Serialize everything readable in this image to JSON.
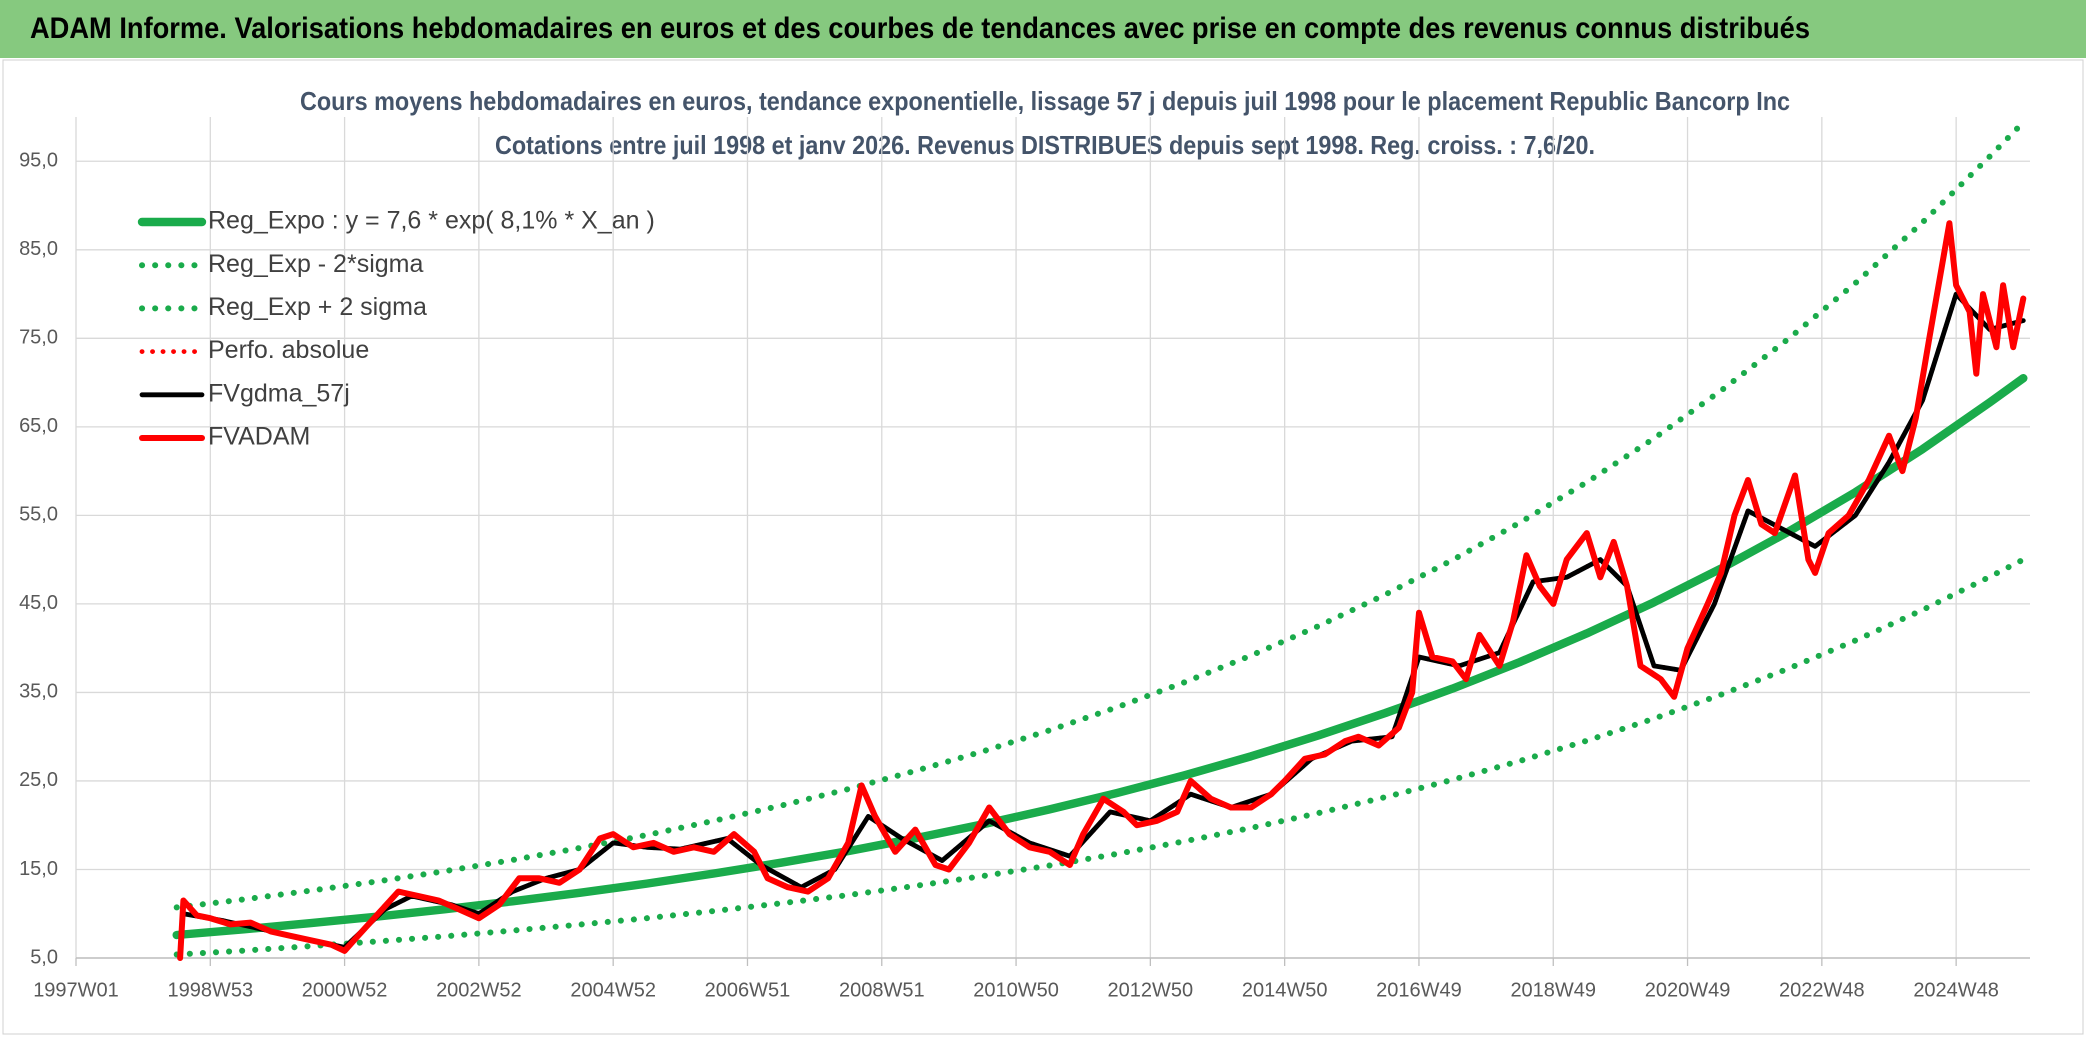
{
  "header": {
    "title": "ADAM Informe. Valorisations hebdomadaires en euros et des courbes de tendances avec prise en compte des revenus connus distribués"
  },
  "chart_data": {
    "type": "line",
    "title": "Cours moyens hebdomadaires en euros, tendance exponentielle, lissage 57 j depuis juil 1998 pour le placement Republic Bancorp Inc",
    "subtitle": "Cotations entre juil 1998 et janv 2026. Revenus DISTRIBUES depuis sept 1998. Reg. croiss. : 7,6/20.",
    "xlim": [
      1997,
      2026.1
    ],
    "ylim": [
      5,
      100
    ],
    "xticks": [
      {
        "value": 1997,
        "label": "1997W01"
      },
      {
        "value": 1999,
        "label": "1998W53"
      },
      {
        "value": 2001,
        "label": "2000W52"
      },
      {
        "value": 2003,
        "label": "2002W52"
      },
      {
        "value": 2005,
        "label": "2004W52"
      },
      {
        "value": 2007,
        "label": "2006W51"
      },
      {
        "value": 2009,
        "label": "2008W51"
      },
      {
        "value": 2011,
        "label": "2010W50"
      },
      {
        "value": 2013,
        "label": "2012W50"
      },
      {
        "value": 2015,
        "label": "2014W50"
      },
      {
        "value": 2017,
        "label": "2016W49"
      },
      {
        "value": 2019,
        "label": "2018W49"
      },
      {
        "value": 2021,
        "label": "2020W49"
      },
      {
        "value": 2023,
        "label": "2022W48"
      },
      {
        "value": 2025,
        "label": "2024W48"
      }
    ],
    "yticks": [
      {
        "value": 5,
        "label": "5,0"
      },
      {
        "value": 15,
        "label": "15,0"
      },
      {
        "value": 25,
        "label": "25,0"
      },
      {
        "value": 35,
        "label": "35,0"
      },
      {
        "value": 45,
        "label": "45,0"
      },
      {
        "value": 55,
        "label": "55,0"
      },
      {
        "value": 65,
        "label": "65,0"
      },
      {
        "value": 75,
        "label": "75,0"
      },
      {
        "value": 85,
        "label": "85,0"
      },
      {
        "value": 95,
        "label": "95,0"
      }
    ],
    "grid": true,
    "legend": "upper left",
    "series": [
      {
        "name": "Reg_Expo : y = 7,6 * exp( 8,1% *  X_an )",
        "color": "#1aab4b",
        "dotted": false,
        "width": 7,
        "x": [
          1998.5,
          1999.5,
          2000.5,
          2001.5,
          2002.5,
          2003.5,
          2004.5,
          2005.5,
          2006.5,
          2007.5,
          2008.5,
          2009.5,
          2010.5,
          2011.5,
          2012.5,
          2013.5,
          2014.5,
          2015.5,
          2016.5,
          2017.5,
          2018.5,
          2019.5,
          2020.5,
          2021.5,
          2022.5,
          2023.5,
          2024.5,
          2025.5,
          2026
        ],
        "values": [
          7.6,
          8.24,
          8.94,
          9.69,
          10.51,
          11.4,
          12.36,
          13.4,
          14.54,
          15.76,
          17.08,
          18.53,
          20.09,
          21.79,
          23.63,
          25.62,
          27.78,
          30.13,
          32.67,
          35.43,
          38.42,
          41.67,
          45.18,
          49,
          53.14,
          57.62,
          62.49,
          67.76,
          70.5
        ]
      },
      {
        "name": "Reg_Exp - 2*sigma",
        "color": "#1aab4b",
        "dotted": true,
        "width": 5,
        "x": [
          1998.5,
          1999.5,
          2000.5,
          2001.5,
          2002.5,
          2003.5,
          2004.5,
          2005.5,
          2006.5,
          2007.5,
          2008.5,
          2009.5,
          2010.5,
          2011.5,
          2012.5,
          2013.5,
          2014.5,
          2015.5,
          2016.5,
          2017.5,
          2018.5,
          2019.5,
          2020.5,
          2021.5,
          2022.5,
          2023.5,
          2024.5,
          2025.5,
          2026
        ],
        "values": [
          5.39,
          5.84,
          6.34,
          6.87,
          7.45,
          8.09,
          8.77,
          9.5,
          10.31,
          11.18,
          12.11,
          13.14,
          14.25,
          15.45,
          16.76,
          18.17,
          19.7,
          21.37,
          23.17,
          25.13,
          27.25,
          29.55,
          32.04,
          34.75,
          37.69,
          40.87,
          44.32,
          48.06,
          50
        ]
      },
      {
        "name": "Reg_Exp + 2 sigma",
        "color": "#1aab4b",
        "dotted": true,
        "width": 5,
        "x": [
          1998.5,
          1999.5,
          2000.5,
          2001.5,
          2002.5,
          2003.5,
          2004.5,
          2005.5,
          2006.5,
          2007.5,
          2008.5,
          2009.5,
          2010.5,
          2011.5,
          2012.5,
          2013.5,
          2014.5,
          2015.5,
          2016.5,
          2017.5,
          2018.5,
          2019.5,
          2020.5,
          2021.5,
          2022.5,
          2023.5,
          2024.5,
          2025.5,
          2026
        ],
        "values": [
          10.72,
          11.62,
          12.61,
          13.66,
          14.82,
          16.07,
          17.43,
          18.89,
          20.5,
          22.22,
          24.08,
          26.13,
          28.33,
          30.72,
          33.32,
          36.12,
          39.17,
          42.48,
          46.06,
          49.96,
          54.17,
          58.75,
          63.7,
          69.09,
          74.93,
          81.24,
          88.11,
          95.54,
          99.4
        ]
      },
      {
        "name": "Perfo. absolue",
        "color": "#ff0000",
        "dotted": true,
        "width": 4,
        "x": [
          1998.6,
          1999.2,
          1999.8,
          2000.5,
          2001,
          2001.6,
          2002,
          2002.6,
          2003,
          2003.5,
          2004,
          2004.5,
          2005,
          2005.5,
          2006,
          2006.7,
          2007.2,
          2007.8,
          2008.3,
          2008.8,
          2009.3,
          2009.9,
          2010.6,
          2011.2,
          2011.8,
          2012.4,
          2013,
          2013.6,
          2014.2,
          2014.8,
          2015.4,
          2016,
          2016.6,
          2017,
          2017.6,
          2018.2,
          2018.7,
          2019.2,
          2019.7,
          2020.1,
          2020.5,
          2020.9,
          2021.4,
          2021.9,
          2022.4,
          2022.9,
          2023.5,
          2024,
          2024.5,
          2025,
          2025.5,
          2026
        ],
        "values": [
          10,
          9.2,
          8.2,
          7,
          6.2,
          10.5,
          12,
          11,
          10,
          12.5,
          14,
          15,
          18,
          17.5,
          17.3,
          18.5,
          15.5,
          13,
          15,
          21,
          18.5,
          16,
          20.5,
          18,
          16.5,
          21.5,
          20.5,
          23.5,
          22,
          23.5,
          27.5,
          29.5,
          30,
          39,
          38,
          39.5,
          47.5,
          48,
          50,
          47,
          38,
          37.5,
          45,
          55.5,
          53.5,
          51.5,
          55,
          61,
          68,
          80,
          76,
          77
        ]
      },
      {
        "name": "FVgdma_57j",
        "color": "#000000",
        "dotted": false,
        "width": 4,
        "x": [
          1998.6,
          1999.2,
          1999.8,
          2000.5,
          2001,
          2001.6,
          2002,
          2002.6,
          2003,
          2003.5,
          2004,
          2004.5,
          2005,
          2005.5,
          2006,
          2006.7,
          2007.2,
          2007.8,
          2008.3,
          2008.8,
          2009.3,
          2009.9,
          2010.6,
          2011.2,
          2011.8,
          2012.4,
          2013,
          2013.6,
          2014.2,
          2014.8,
          2015.4,
          2016,
          2016.6,
          2017,
          2017.6,
          2018.2,
          2018.7,
          2019.2,
          2019.7,
          2020.1,
          2020.5,
          2020.9,
          2021.4,
          2021.9,
          2022.4,
          2022.9,
          2023.5,
          2024,
          2024.5,
          2025,
          2025.5,
          2026
        ],
        "values": [
          10,
          9.2,
          8.2,
          7,
          6.2,
          10.5,
          12,
          11,
          10,
          12.5,
          14,
          15,
          18,
          17.5,
          17.3,
          18.5,
          15.5,
          13,
          15,
          21,
          18.5,
          16,
          20.5,
          18,
          16.5,
          21.5,
          20.5,
          23.5,
          22,
          23.5,
          27.5,
          29.5,
          30,
          39,
          38,
          39.5,
          47.5,
          48,
          50,
          47,
          38,
          37.5,
          45,
          55.5,
          53.5,
          51.5,
          55,
          61,
          68,
          80,
          76,
          77
        ]
      },
      {
        "name": "FVADAM",
        "color": "#ff0000",
        "dotted": false,
        "width": 5,
        "x": [
          1998.55,
          1998.6,
          1998.8,
          1999,
          1999.3,
          1999.6,
          1999.9,
          2000.2,
          2000.5,
          2000.8,
          2001,
          2001.2,
          2001.5,
          2001.8,
          2002.1,
          2002.4,
          2002.7,
          2003,
          2003.3,
          2003.6,
          2003.9,
          2004.2,
          2004.5,
          2004.8,
          2005,
          2005.3,
          2005.6,
          2005.9,
          2006.2,
          2006.5,
          2006.8,
          2007.1,
          2007.3,
          2007.6,
          2007.9,
          2008.2,
          2008.5,
          2008.7,
          2008.9,
          2009.2,
          2009.5,
          2009.8,
          2010,
          2010.3,
          2010.6,
          2010.9,
          2011.2,
          2011.5,
          2011.8,
          2012,
          2012.3,
          2012.6,
          2012.8,
          2013.1,
          2013.4,
          2013.6,
          2013.9,
          2014.2,
          2014.5,
          2014.8,
          2015,
          2015.3,
          2015.6,
          2015.9,
          2016.1,
          2016.4,
          2016.7,
          2016.9,
          2017,
          2017.2,
          2017.5,
          2017.7,
          2017.9,
          2018.2,
          2018.4,
          2018.6,
          2018.8,
          2019,
          2019.2,
          2019.5,
          2019.7,
          2019.9,
          2020.1,
          2020.3,
          2020.6,
          2020.8,
          2021,
          2021.3,
          2021.5,
          2021.7,
          2021.9,
          2022.1,
          2022.3,
          2022.6,
          2022.8,
          2022.9,
          2023.1,
          2023.4,
          2023.7,
          2024,
          2024.2,
          2024.4,
          2024.6,
          2024.9,
          2025,
          2025.2,
          2025.3,
          2025.4,
          2025.6,
          2025.7,
          2025.85,
          2026
        ],
        "values": [
          5,
          11.5,
          9.8,
          9.5,
          8.8,
          9,
          8,
          7.5,
          7,
          6.5,
          5.8,
          7.5,
          10,
          12.5,
          12,
          11.5,
          10.5,
          9.5,
          11,
          14,
          14,
          13.5,
          15,
          18.5,
          19,
          17.5,
          18,
          17,
          17.5,
          17,
          19,
          17,
          14,
          13,
          12.5,
          14,
          18,
          24.5,
          21,
          17,
          19.5,
          15.5,
          15,
          18,
          22,
          19,
          17.5,
          17,
          15.5,
          19,
          23,
          21.5,
          20,
          20.5,
          21.5,
          25,
          23,
          22,
          22,
          23.5,
          25,
          27.5,
          28,
          29.5,
          30,
          29,
          31,
          35,
          44,
          39,
          38.5,
          36.5,
          41.5,
          38,
          43,
          50.5,
          47,
          45,
          50,
          53,
          48,
          52,
          47,
          38,
          36.5,
          34.5,
          40,
          45,
          48.5,
          55,
          59,
          54,
          53,
          59.5,
          50,
          48.5,
          53,
          55,
          59,
          64,
          60,
          66,
          75,
          88,
          81,
          78,
          71,
          80,
          74,
          81,
          74,
          79.5
        ]
      }
    ]
  }
}
